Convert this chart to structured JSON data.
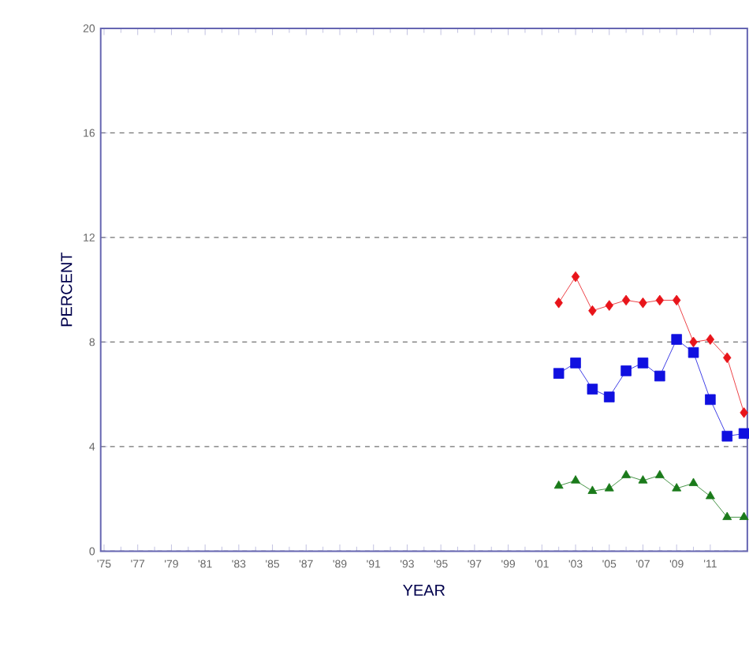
{
  "chart_data": {
    "type": "line",
    "xlabel": "YEAR",
    "ylabel": "PERCENT",
    "x": [
      2002,
      2003,
      2004,
      2005,
      2006,
      2007,
      2008,
      2009,
      2010,
      2011,
      2012,
      2013
    ],
    "series": [
      {
        "color": "#e8141a",
        "marker": "diamond",
        "values": [
          9.5,
          10.5,
          9.2,
          9.4,
          9.6,
          9.5,
          9.6,
          9.6,
          8.0,
          8.1,
          7.4,
          5.3
        ]
      },
      {
        "color": "#1010e0",
        "marker": "square",
        "values": [
          6.8,
          7.2,
          6.2,
          5.9,
          6.9,
          7.2,
          6.7,
          8.1,
          7.6,
          5.8,
          4.4,
          4.5
        ]
      },
      {
        "color": "#1a7a1a",
        "marker": "triangle",
        "values": [
          2.5,
          2.7,
          2.3,
          2.4,
          2.9,
          2.7,
          2.9,
          2.4,
          2.6,
          2.1,
          1.3,
          1.3
        ]
      }
    ],
    "xlim": [
      1974.8,
      2013.2
    ],
    "xticks": [
      {
        "value": 1975,
        "label": "'75"
      },
      {
        "value": 1977,
        "label": "'77"
      },
      {
        "value": 1979,
        "label": "'79"
      },
      {
        "value": 1981,
        "label": "'81"
      },
      {
        "value": 1983,
        "label": "'83"
      },
      {
        "value": 1985,
        "label": "'85"
      },
      {
        "value": 1987,
        "label": "'87"
      },
      {
        "value": 1989,
        "label": "'89"
      },
      {
        "value": 1991,
        "label": "'91"
      },
      {
        "value": 1993,
        "label": "'93"
      },
      {
        "value": 1995,
        "label": "'95"
      },
      {
        "value": 1997,
        "label": "'97"
      },
      {
        "value": 1999,
        "label": "'99"
      },
      {
        "value": 2001,
        "label": "'01"
      },
      {
        "value": 2003,
        "label": "'03"
      },
      {
        "value": 2005,
        "label": "'05"
      },
      {
        "value": 2007,
        "label": "'07"
      },
      {
        "value": 2009,
        "label": "'09"
      },
      {
        "value": 2011,
        "label": "'11"
      }
    ],
    "ylim": [
      0,
      20
    ],
    "yticks": [
      0,
      4,
      8,
      12,
      16,
      20
    ],
    "grid": "y",
    "line_style": "solid"
  }
}
